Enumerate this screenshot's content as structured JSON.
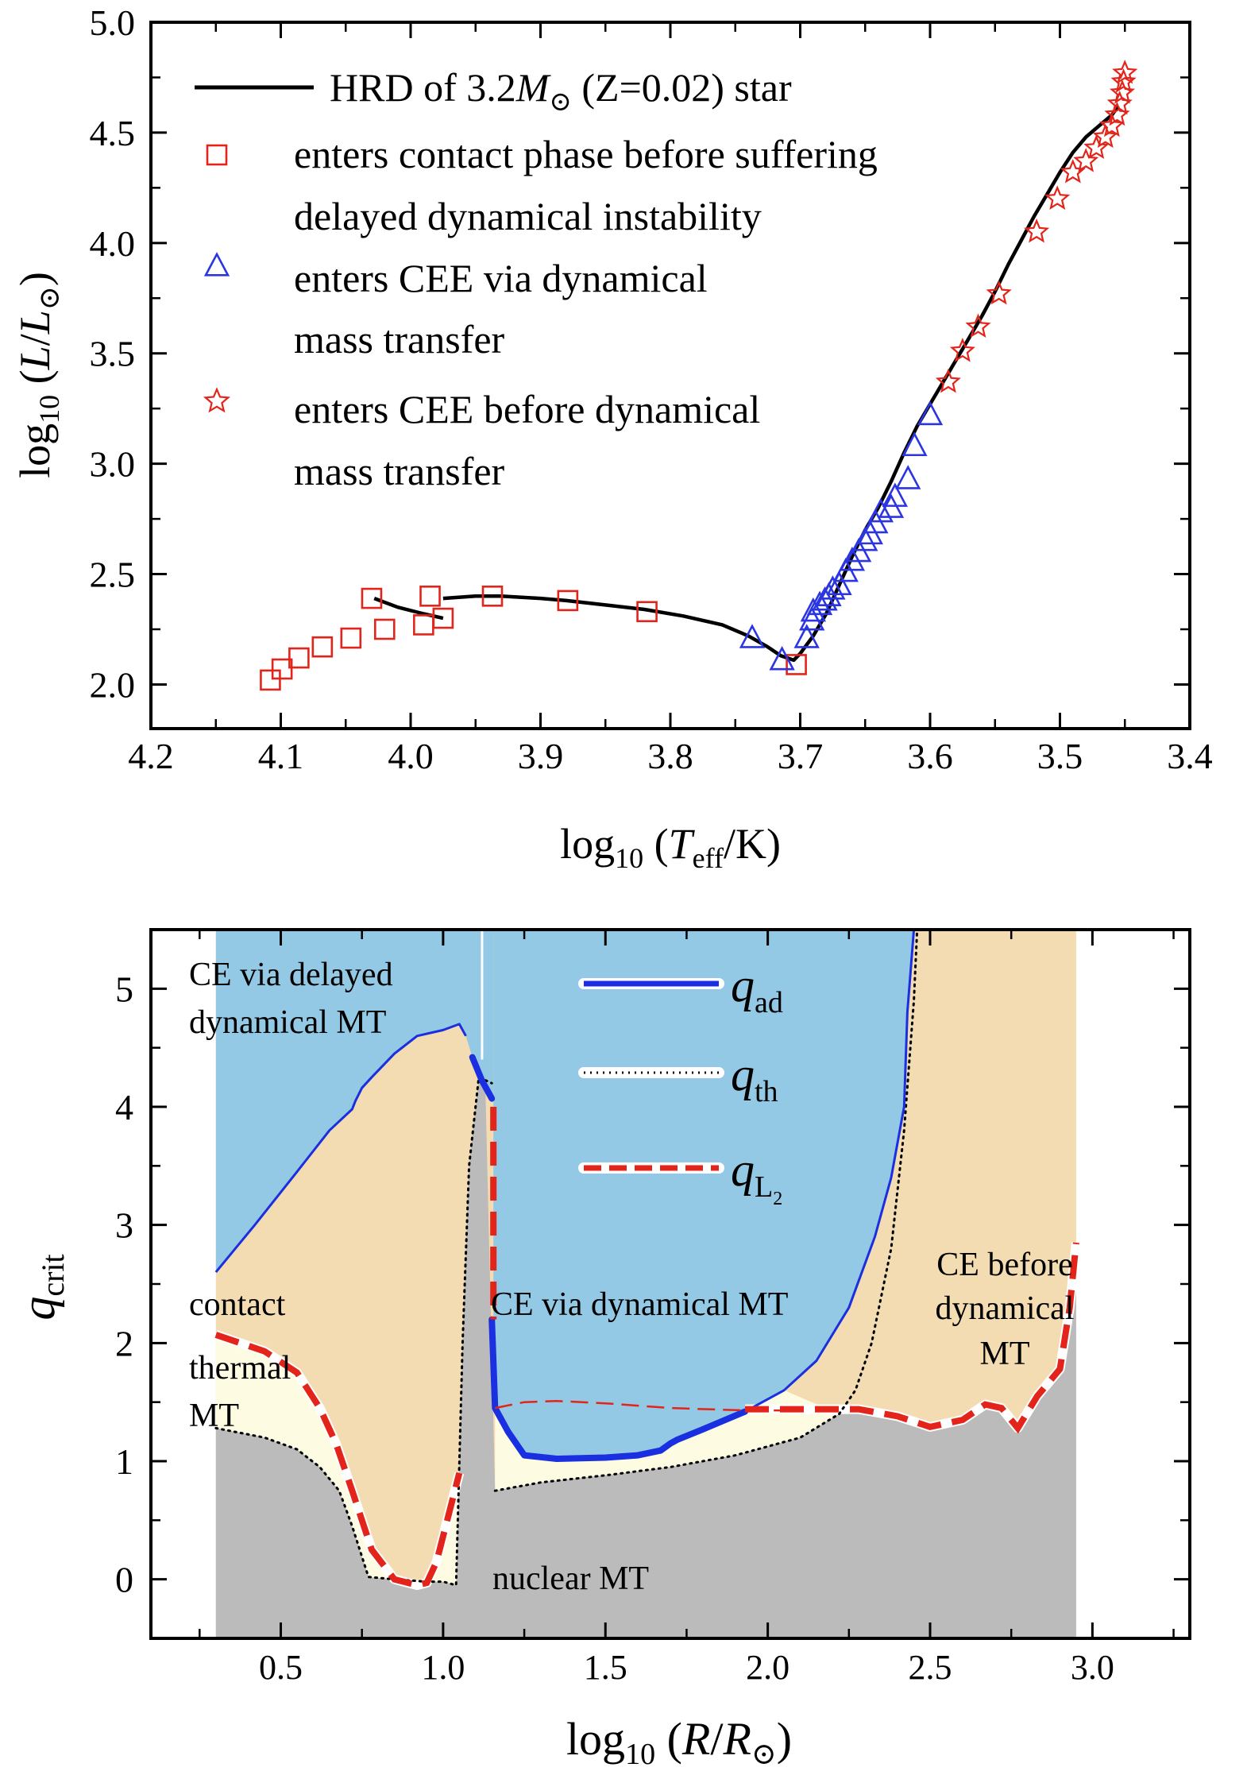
{
  "chart_data": [
    {
      "type": "line",
      "title": "",
      "xlabel": {
        "pre": "log",
        "sub": "10",
        "post1": " (",
        "ital": "T",
        "italsub": "eff",
        "post2": "/K)"
      },
      "ylabel": {
        "pre": "log",
        "sub": "10",
        "post1": " (",
        "ital": "L",
        "slash": "/",
        "ital2": "L",
        "odot": "⊙",
        "post2": ")"
      },
      "xlim": [
        4.2,
        3.4
      ],
      "ylim": [
        1.8,
        5.0
      ],
      "x_ticks": [
        4.2,
        4.1,
        4.0,
        3.9,
        3.8,
        3.7,
        3.6,
        3.5,
        3.4
      ],
      "x_tick_labels": [
        "4.2",
        "4.1",
        "4.0",
        "3.9",
        "3.8",
        "3.7",
        "3.6",
        "3.5",
        "3.4"
      ],
      "y_ticks": [
        2.0,
        2.5,
        3.0,
        3.5,
        4.0,
        4.5,
        5.0
      ],
      "y_tick_labels": [
        "2.0",
        "2.5",
        "3.0",
        "3.5",
        "4.0",
        "4.5",
        "5.0"
      ],
      "legend": [
        {
          "marker": "line",
          "color": "#000000",
          "text_parts": [
            "HRD of 3.2",
            "M",
            "⊙",
            " (Z=0.02) star"
          ]
        },
        {
          "marker": "square",
          "color": "#e3241b",
          "lines": [
            "enters contact phase before suffering",
            "delayed dynamical instability"
          ]
        },
        {
          "marker": "triangle",
          "color": "#2b35e0",
          "lines": [
            "enters CEE via dynamical",
            "mass transfer"
          ]
        },
        {
          "marker": "star",
          "color": "#e3241b",
          "lines": [
            "enters CEE before dynamical",
            "mass transfer"
          ]
        }
      ],
      "series": [
        {
          "name": "HRD track (MS segment)",
          "type": "line",
          "color": "#000000",
          "x": [
            4.028,
            4.01,
            3.99,
            3.975
          ],
          "y": [
            2.39,
            2.35,
            2.32,
            2.3
          ]
        },
        {
          "name": "HRD track (hook to giant branch)",
          "type": "line",
          "color": "#000000",
          "x": [
            3.975,
            3.95,
            3.93,
            3.9,
            3.88,
            3.85,
            3.82,
            3.79,
            3.76,
            3.74,
            3.725,
            3.715,
            3.705,
            3.7,
            3.69,
            3.68,
            3.67,
            3.66,
            3.65,
            3.64,
            3.63,
            3.62,
            3.61,
            3.6,
            3.59,
            3.58,
            3.57,
            3.56,
            3.55,
            3.54,
            3.53,
            3.52,
            3.51,
            3.5,
            3.49,
            3.48,
            3.47,
            3.46,
            3.455
          ],
          "y": [
            2.39,
            2.4,
            2.4,
            2.39,
            2.38,
            2.36,
            2.34,
            2.31,
            2.27,
            2.22,
            2.17,
            2.13,
            2.11,
            2.14,
            2.22,
            2.32,
            2.45,
            2.58,
            2.7,
            2.8,
            2.92,
            3.05,
            3.17,
            3.27,
            3.37,
            3.47,
            3.57,
            3.67,
            3.78,
            3.9,
            4.01,
            4.12,
            4.22,
            4.32,
            4.41,
            4.48,
            4.53,
            4.58,
            4.62
          ]
        },
        {
          "name": "enters contact phase before suffering delayed dynamical instability",
          "type": "scatter",
          "marker": "square",
          "color": "#e3241b",
          "x": [
            4.108,
            4.099,
            4.086,
            4.068,
            4.046,
            4.03,
            4.02,
            3.99,
            3.975,
            3.985,
            3.937,
            3.879,
            3.818,
            3.703
          ],
          "y": [
            2.02,
            2.07,
            2.12,
            2.17,
            2.21,
            2.39,
            2.25,
            2.27,
            2.3,
            2.4,
            2.4,
            2.38,
            2.33,
            2.09
          ]
        },
        {
          "name": "enters CEE via dynamical mass transfer",
          "type": "scatter",
          "marker": "triangle",
          "color": "#2b35e0",
          "x": [
            3.737,
            3.714,
            3.695,
            3.691,
            3.69,
            3.685,
            3.681,
            3.678,
            3.675,
            3.67,
            3.665,
            3.66,
            3.655,
            3.65,
            3.646,
            3.642,
            3.638,
            3.63,
            3.627,
            3.617,
            3.612,
            3.6
          ],
          "y": [
            2.21,
            2.11,
            2.21,
            2.29,
            2.33,
            2.36,
            2.38,
            2.4,
            2.43,
            2.45,
            2.51,
            2.56,
            2.6,
            2.65,
            2.68,
            2.73,
            2.78,
            2.8,
            2.85,
            2.93,
            3.08,
            3.22
          ]
        },
        {
          "name": "enters CEE before dynamical mass transfer",
          "type": "scatter",
          "marker": "star",
          "color": "#e3241b",
          "x": [
            3.586,
            3.575,
            3.563,
            3.547,
            3.518,
            3.502,
            3.49,
            3.48,
            3.472,
            3.465,
            3.46,
            3.456,
            3.454,
            3.452,
            3.451,
            3.45
          ],
          "y": [
            3.37,
            3.51,
            3.62,
            3.77,
            4.05,
            4.2,
            4.32,
            4.37,
            4.43,
            4.48,
            4.53,
            4.58,
            4.63,
            4.68,
            4.73,
            4.77
          ]
        }
      ]
    },
    {
      "type": "area",
      "title": "",
      "xlabel": {
        "pre": "log",
        "sub": "10",
        "post1": " (",
        "ital": "R",
        "slash": "/",
        "ital2": "R",
        "odot": "⊙",
        "post2": ")"
      },
      "ylabel": {
        "ital": "q",
        "sub": "crit"
      },
      "xlim": [
        0.1,
        3.3
      ],
      "ylim": [
        -0.5,
        5.5
      ],
      "x_ticks": [
        0.5,
        1.0,
        1.5,
        2.0,
        2.5,
        3.0
      ],
      "x_tick_labels": [
        "0.5",
        "1.0",
        "1.5",
        "2.0",
        "2.5",
        "3.0"
      ],
      "y_ticks": [
        0,
        1,
        2,
        3,
        4,
        5
      ],
      "y_tick_labels": [
        "0",
        "1",
        "2",
        "3",
        "4",
        "5"
      ],
      "colors": {
        "ce_dyn": "#93c9e4",
        "contact": "#f4dcb2",
        "thermal": "#fdfce3",
        "nuclear": "#bbbbbb",
        "qad": "#1a2fe0",
        "qL2": "#e3241b"
      },
      "region_labels": [
        {
          "lines": [
            "CE via delayed",
            "dynamical MT"
          ]
        },
        {
          "lines": [
            "contact"
          ]
        },
        {
          "lines": [
            "thermal",
            "MT"
          ]
        },
        {
          "lines": [
            "CE via dynamical MT"
          ]
        },
        {
          "lines": [
            "CE before",
            "dynamical",
            "MT"
          ]
        },
        {
          "lines": [
            "nuclear MT"
          ]
        }
      ],
      "legend": [
        {
          "name": "q_ad",
          "ital": "q",
          "sub": "ad",
          "style": "solid",
          "color": "#1a2fe0"
        },
        {
          "name": "q_th",
          "ital": "q",
          "sub": "th",
          "style": "dotted",
          "color": "#000000"
        },
        {
          "name": "q_L2",
          "ital": "q",
          "sub": "L",
          "subsub": "2",
          "style": "dashed",
          "color": "#e3241b"
        }
      ],
      "series": [
        {
          "name": "q_ad (branch 1)",
          "color": "#1a2fe0",
          "x": [
            0.3,
            0.42,
            0.55,
            0.65,
            0.72,
            0.73,
            0.75,
            0.78,
            0.85,
            0.92,
            1.0,
            1.05,
            1.07
          ],
          "y": [
            2.6,
            3.0,
            3.45,
            3.8,
            3.98,
            4.05,
            4.16,
            4.25,
            4.45,
            4.6,
            4.65,
            4.7,
            4.6
          ]
        },
        {
          "name": "q_ad (bold segment near 1.1)",
          "color": "#1a2fe0",
          "x": [
            1.09,
            1.12,
            1.15
          ],
          "y": [
            4.42,
            4.22,
            4.07
          ]
        },
        {
          "name": "q_ad (branch 2, thin)",
          "color": "#1a2fe0",
          "x": [
            1.93,
            2.05,
            2.15,
            2.25,
            2.33,
            2.38,
            2.42,
            2.43,
            2.45
          ],
          "y": [
            1.42,
            1.6,
            1.85,
            2.3,
            2.9,
            3.4,
            4.0,
            4.8,
            5.5
          ]
        },
        {
          "name": "q_ad (branch 2, bold)",
          "color": "#1a2fe0",
          "x": [
            1.15,
            1.16,
            1.2,
            1.25,
            1.35,
            1.5,
            1.6,
            1.67,
            1.7,
            1.72,
            1.8,
            1.93
          ],
          "y": [
            2.2,
            1.45,
            1.25,
            1.05,
            1.02,
            1.03,
            1.05,
            1.09,
            1.15,
            1.18,
            1.27,
            1.42
          ]
        },
        {
          "name": "q_th",
          "color": "#000000",
          "x": [
            0.3,
            0.45,
            0.55,
            0.62,
            0.68,
            0.72,
            0.77,
            0.85,
            0.95,
            1.0,
            1.04,
            1.06,
            1.08,
            1.11,
            1.15
          ],
          "y": [
            1.28,
            1.2,
            1.1,
            0.95,
            0.75,
            0.45,
            0.02,
            0.0,
            -0.02,
            -0.02,
            -0.05,
            2.0,
            3.5,
            4.25,
            4.2
          ]
        },
        {
          "name": "q_th (branch 2)",
          "color": "#000000",
          "x": [
            1.16,
            1.3,
            1.5,
            1.7,
            1.9,
            2.1,
            2.22,
            2.27,
            2.32,
            2.38,
            2.42,
            2.45,
            2.46
          ],
          "y": [
            0.75,
            0.82,
            0.88,
            0.95,
            1.05,
            1.2,
            1.4,
            1.6,
            2.0,
            2.8,
            3.8,
            4.9,
            5.5
          ]
        },
        {
          "name": "q_L2",
          "color": "#e3241b",
          "x": [
            0.3,
            0.45,
            0.55,
            0.62,
            0.67,
            0.72,
            0.78,
            0.85,
            0.92,
            0.95,
            0.98,
            1.05
          ],
          "y": [
            2.07,
            1.93,
            1.75,
            1.45,
            1.15,
            0.75,
            0.25,
            0.0,
            -0.05,
            -0.03,
            0.15,
            0.9
          ]
        },
        {
          "name": "q_L2 (vertical)",
          "color": "#e3241b",
          "x": [
            1.155,
            1.155
          ],
          "y": [
            4.0,
            2.2
          ]
        },
        {
          "name": "q_L2 (thin)",
          "color": "#e3241b",
          "x": [
            1.16,
            1.25,
            1.35,
            1.5,
            1.7,
            1.93,
            2.1
          ],
          "y": [
            1.45,
            1.5,
            1.51,
            1.49,
            1.45,
            1.43,
            1.43
          ]
        },
        {
          "name": "q_L2 (bold tail)",
          "color": "#e3241b",
          "x": [
            1.93,
            2.1,
            2.28,
            2.4,
            2.5,
            2.6,
            2.67,
            2.72,
            2.77,
            2.83,
            2.9,
            2.93,
            2.95
          ],
          "y": [
            1.44,
            1.44,
            1.44,
            1.38,
            1.29,
            1.35,
            1.48,
            1.45,
            1.28,
            1.55,
            1.78,
            2.3,
            2.85
          ]
        }
      ]
    }
  ]
}
